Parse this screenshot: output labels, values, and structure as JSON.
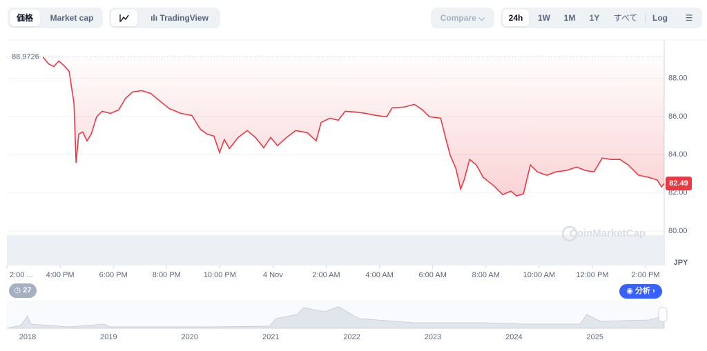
{
  "ui": {
    "tabs": [
      "価格",
      "Market cap"
    ],
    "tools": [
      "TradingView"
    ],
    "compare": "Compare",
    "ranges": [
      "24h",
      "1W",
      "1M",
      "1Y",
      "すべて"
    ],
    "log": "Log",
    "currency": "JPY",
    "events": "27",
    "analysis": "分析",
    "watermark": "CoinMarketCap"
  },
  "chart_data": {
    "type": "line",
    "open_label": "88.9726",
    "x": [
      1.35,
      1.56,
      1.76,
      1.95,
      2.13,
      2.34,
      2.44,
      2.52,
      2.6,
      2.7,
      2.85,
      3.01,
      3.17,
      3.37,
      3.58,
      3.89,
      4.2,
      4.46,
      4.72,
      5.06,
      5.4,
      5.71,
      6.1,
      6.54,
      6.95,
      7.27,
      7.52,
      7.78,
      7.99,
      8.17,
      8.36,
      8.69,
      9.03,
      9.34,
      9.65,
      9.91,
      10.17,
      10.51,
      10.85,
      11.29,
      11.62,
      11.81,
      12.14,
      12.45,
      12.71,
      13.1,
      13.49,
      13.88,
      14.27,
      14.48,
      14.92,
      15.31,
      15.62,
      15.88,
      16.3,
      16.48,
      16.66,
      16.87,
      17.05,
      17.18,
      17.39,
      17.64,
      17.9,
      18.29,
      18.63,
      18.94,
      19.15,
      19.41,
      19.67,
      19.93,
      20.29,
      20.63,
      21.02,
      21.41,
      21.74,
      22.06,
      22.37,
      22.7,
      23.04,
      23.35,
      23.74,
      24.13,
      24.44,
      24.6,
      24.7
    ],
    "series": [
      {
        "color": "#ea3943",
        "values": [
          89.12,
          88.76,
          88.61,
          88.9,
          88.68,
          88.36,
          87.42,
          86.7,
          83.57,
          85.08,
          85.19,
          84.72,
          85.08,
          85.98,
          86.27,
          86.16,
          86.34,
          86.95,
          87.28,
          87.35,
          87.21,
          86.85,
          86.41,
          86.16,
          86.05,
          85.33,
          85.08,
          84.97,
          84.11,
          84.79,
          84.32,
          84.9,
          85.26,
          84.9,
          84.36,
          84.9,
          84.47,
          84.9,
          85.26,
          85.15,
          84.72,
          85.69,
          85.91,
          85.8,
          86.27,
          86.23,
          86.16,
          86.05,
          85.98,
          86.45,
          86.49,
          86.63,
          86.34,
          85.98,
          85.91,
          84.9,
          83.96,
          83.28,
          82.2,
          82.67,
          83.75,
          83.46,
          82.81,
          82.38,
          81.91,
          82.09,
          81.84,
          81.95,
          83.46,
          83.1,
          82.92,
          83.1,
          83.17,
          83.35,
          83.17,
          83.1,
          83.82,
          83.75,
          83.75,
          83.46,
          82.92,
          82.81,
          82.67,
          82.31,
          82.49
        ]
      }
    ],
    "xlim": [
      0,
      24.7
    ],
    "xticks": [
      {
        "value": 0,
        "label": "2:00 ..."
      },
      {
        "value": 2,
        "label": "4:00 PM"
      },
      {
        "value": 4,
        "label": "6:00 PM"
      },
      {
        "value": 6,
        "label": "8:00 PM"
      },
      {
        "value": 8,
        "label": "10:00 PM"
      },
      {
        "value": 10,
        "label": "4 Nov"
      },
      {
        "value": 12,
        "label": "2:00 AM"
      },
      {
        "value": 14,
        "label": "4:00 AM"
      },
      {
        "value": 16,
        "label": "6:00 AM"
      },
      {
        "value": 18,
        "label": "8:00 AM"
      },
      {
        "value": 20,
        "label": "10:00 AM"
      },
      {
        "value": 22,
        "label": "12:00 PM"
      },
      {
        "value": 24,
        "label": "2:00 PM"
      }
    ],
    "ylim": [
      78.2,
      90
    ],
    "yticks": [
      {
        "value": 80,
        "label": "80.00"
      },
      {
        "value": 82,
        "label": "82.00"
      },
      {
        "value": 84,
        "label": "84.00"
      },
      {
        "value": 86,
        "label": "86.00"
      },
      {
        "value": 88,
        "label": "88.00"
      }
    ],
    "grid": true,
    "navigator_years": [
      "2018",
      "2019",
      "2020",
      "2021",
      "2022",
      "2023",
      "2024",
      "2025"
    ]
  }
}
